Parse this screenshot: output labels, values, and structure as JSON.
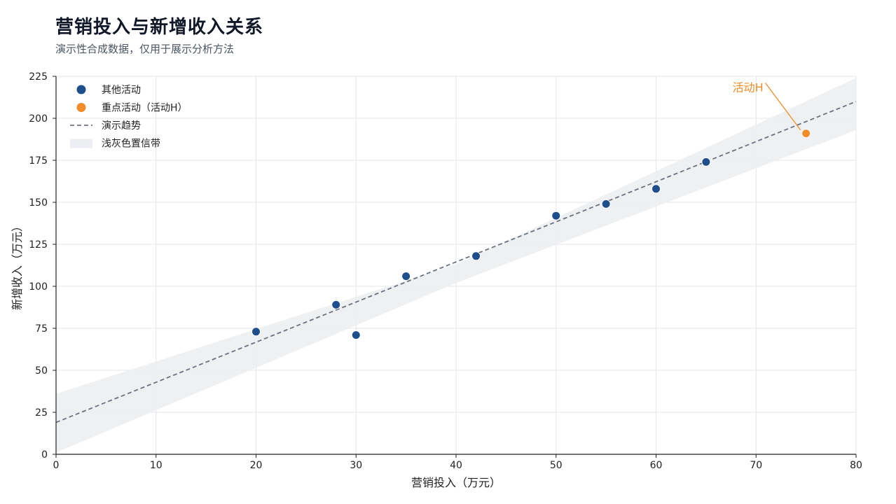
{
  "header": {
    "title": "营销投入与新增收入关系",
    "subtitle": "演示性合成数据，仅用于展示分析方法"
  },
  "chart_data": {
    "type": "scatter",
    "title": "营销投入与新增收入关系",
    "subtitle": "演示性合成数据，仅用于展示分析方法",
    "xlabel": "营销投入（万元）",
    "ylabel": "新增收入（万元）",
    "xlim": [
      0,
      80
    ],
    "ylim": [
      0,
      225
    ],
    "xticks": [
      0,
      10,
      20,
      30,
      40,
      50,
      60,
      70,
      80
    ],
    "yticks": [
      0,
      25,
      50,
      75,
      100,
      125,
      150,
      175,
      200,
      225
    ],
    "grid": true,
    "legend_position": "top-left",
    "legend": [
      {
        "label": "其他活动",
        "kind": "marker",
        "color": "#1f4e8c"
      },
      {
        "label": "重点活动（活动H）",
        "kind": "marker",
        "color": "#f28c28"
      },
      {
        "label": "演示趋势",
        "kind": "dashed-line",
        "color": "#6b7280"
      },
      {
        "label": "浅灰色置信带",
        "kind": "band",
        "color": "#eceef1"
      }
    ],
    "series": [
      {
        "name": "其他活动",
        "color": "#1f4e8c",
        "points": [
          {
            "x": 20,
            "y": 73
          },
          {
            "x": 28,
            "y": 89
          },
          {
            "x": 30,
            "y": 71
          },
          {
            "x": 35,
            "y": 106
          },
          {
            "x": 42,
            "y": 118
          },
          {
            "x": 50,
            "y": 142
          },
          {
            "x": 55,
            "y": 149
          },
          {
            "x": 60,
            "y": 158
          },
          {
            "x": 65,
            "y": 174
          }
        ]
      },
      {
        "name": "重点活动（活动H）",
        "color": "#f28c28",
        "points": [
          {
            "x": 75,
            "y": 191
          }
        ]
      }
    ],
    "trend": {
      "name": "演示趋势",
      "color": "#6b7280",
      "x": [
        0,
        80
      ],
      "y": [
        19,
        210
      ]
    },
    "confidence_band": {
      "name": "浅灰色置信带",
      "color": "#eceef1",
      "x": [
        0,
        40,
        80
      ],
      "lower": [
        1,
        102,
        193
      ],
      "upper": [
        36,
        113,
        224
      ]
    },
    "annotations": [
      {
        "text": "活动H",
        "x": 75,
        "y": 191,
        "color": "#f28c28"
      }
    ]
  }
}
